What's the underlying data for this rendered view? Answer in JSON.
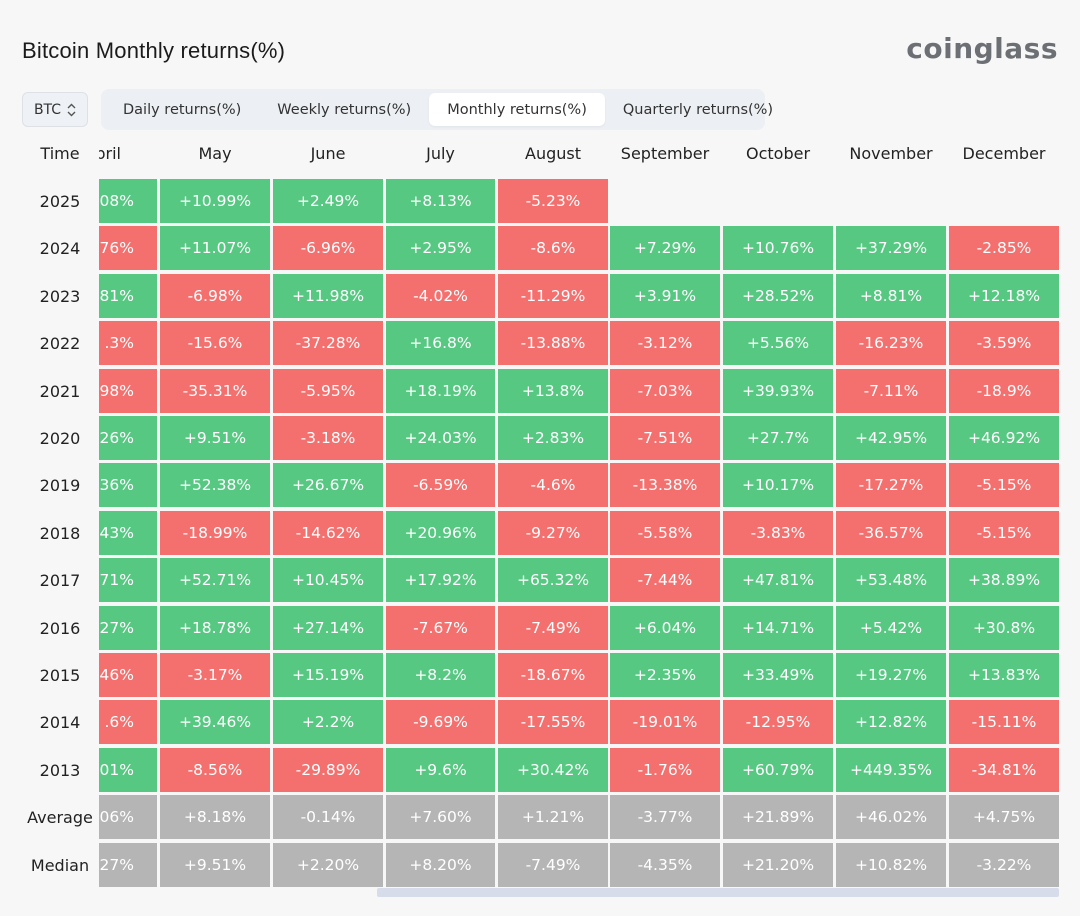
{
  "title": "Bitcoin Monthly returns(%)",
  "brand": "coinglass",
  "coin_select": {
    "value": "BTC"
  },
  "tabs": [
    "Daily returns(%)",
    "Weekly returns(%)",
    "Monthly returns(%)",
    "Quarterly returns(%)"
  ],
  "active_tab": 2,
  "colors": {
    "positive": "#56c882",
    "negative": "#f3706e",
    "summary": "#b5b5b5"
  },
  "chart_data": {
    "type": "heatmap",
    "row_header": "Time",
    "columns": [
      "pril",
      "May",
      "June",
      "July",
      "August",
      "September",
      "October",
      "November",
      "December"
    ],
    "rows": [
      {
        "label": "2025",
        "values": [
          ".08%",
          "+10.99%",
          "+2.49%",
          "+8.13%",
          "-5.23%",
          null,
          null,
          null,
          null
        ],
        "colors": [
          "g",
          "g",
          "g",
          "g",
          "r",
          null,
          null,
          null,
          null
        ]
      },
      {
        "label": "2024",
        "values": [
          ".76%",
          "+11.07%",
          "-6.96%",
          "+2.95%",
          "-8.6%",
          "+7.29%",
          "+10.76%",
          "+37.29%",
          "-2.85%"
        ],
        "colors": [
          "r",
          "g",
          "r",
          "g",
          "r",
          "g",
          "g",
          "g",
          "r"
        ]
      },
      {
        "label": "2023",
        "values": [
          "81%",
          "-6.98%",
          "+11.98%",
          "-4.02%",
          "-11.29%",
          "+3.91%",
          "+28.52%",
          "+8.81%",
          "+12.18%"
        ],
        "colors": [
          "g",
          "r",
          "g",
          "r",
          "r",
          "g",
          "g",
          "g",
          "g"
        ]
      },
      {
        "label": "2022",
        "values": [
          ".3%",
          "-15.6%",
          "-37.28%",
          "+16.8%",
          "-13.88%",
          "-3.12%",
          "+5.56%",
          "-16.23%",
          "-3.59%"
        ],
        "colors": [
          "r",
          "r",
          "r",
          "g",
          "r",
          "r",
          "g",
          "r",
          "r"
        ]
      },
      {
        "label": "2021",
        "values": [
          "98%",
          "-35.31%",
          "-5.95%",
          "+18.19%",
          "+13.8%",
          "-7.03%",
          "+39.93%",
          "-7.11%",
          "-18.9%"
        ],
        "colors": [
          "r",
          "r",
          "r",
          "g",
          "g",
          "r",
          "g",
          "r",
          "r"
        ]
      },
      {
        "label": "2020",
        "values": [
          ".26%",
          "+9.51%",
          "-3.18%",
          "+24.03%",
          "+2.83%",
          "-7.51%",
          "+27.7%",
          "+42.95%",
          "+46.92%"
        ],
        "colors": [
          "g",
          "g",
          "r",
          "g",
          "g",
          "r",
          "g",
          "g",
          "g"
        ]
      },
      {
        "label": "2019",
        "values": [
          ".36%",
          "+52.38%",
          "+26.67%",
          "-6.59%",
          "-4.6%",
          "-13.38%",
          "+10.17%",
          "-17.27%",
          "-5.15%"
        ],
        "colors": [
          "g",
          "g",
          "g",
          "r",
          "r",
          "r",
          "g",
          "r",
          "r"
        ]
      },
      {
        "label": "2018",
        "values": [
          ".43%",
          "-18.99%",
          "-14.62%",
          "+20.96%",
          "-9.27%",
          "-5.58%",
          "-3.83%",
          "-36.57%",
          "-5.15%"
        ],
        "colors": [
          "g",
          "r",
          "r",
          "g",
          "r",
          "r",
          "r",
          "r",
          "r"
        ]
      },
      {
        "label": "2017",
        "values": [
          ".71%",
          "+52.71%",
          "+10.45%",
          "+17.92%",
          "+65.32%",
          "-7.44%",
          "+47.81%",
          "+53.48%",
          "+38.89%"
        ],
        "colors": [
          "g",
          "g",
          "g",
          "g",
          "g",
          "r",
          "g",
          "g",
          "g"
        ]
      },
      {
        "label": "2016",
        "values": [
          "27%",
          "+18.78%",
          "+27.14%",
          "-7.67%",
          "-7.49%",
          "+6.04%",
          "+14.71%",
          "+5.42%",
          "+30.8%"
        ],
        "colors": [
          "g",
          "g",
          "g",
          "r",
          "r",
          "g",
          "g",
          "g",
          "g"
        ]
      },
      {
        "label": "2015",
        "values": [
          "46%",
          "-3.17%",
          "+15.19%",
          "+8.2%",
          "-18.67%",
          "+2.35%",
          "+33.49%",
          "+19.27%",
          "+13.83%"
        ],
        "colors": [
          "r",
          "r",
          "g",
          "g",
          "r",
          "g",
          "g",
          "g",
          "g"
        ]
      },
      {
        "label": "2014",
        "values": [
          ".6%",
          "+39.46%",
          "+2.2%",
          "-9.69%",
          "-17.55%",
          "-19.01%",
          "-12.95%",
          "+12.82%",
          "-15.11%"
        ],
        "colors": [
          "r",
          "g",
          "g",
          "r",
          "r",
          "r",
          "r",
          "g",
          "r"
        ]
      },
      {
        "label": "2013",
        "values": [
          ".01%",
          "-8.56%",
          "-29.89%",
          "+9.6%",
          "+30.42%",
          "-1.76%",
          "+60.79%",
          "+449.35%",
          "-34.81%"
        ],
        "colors": [
          "g",
          "r",
          "r",
          "g",
          "g",
          "r",
          "g",
          "g",
          "r"
        ]
      },
      {
        "label": "Average",
        "values": [
          ".06%",
          "+8.18%",
          "-0.14%",
          "+7.60%",
          "+1.21%",
          "-3.77%",
          "+21.89%",
          "+46.02%",
          "+4.75%"
        ],
        "colors": [
          "s",
          "s",
          "s",
          "s",
          "s",
          "s",
          "s",
          "s",
          "s"
        ]
      },
      {
        "label": "Median",
        "values": [
          "27%",
          "+9.51%",
          "+2.20%",
          "+8.20%",
          "-7.49%",
          "-4.35%",
          "+21.20%",
          "+10.82%",
          "-3.22%"
        ],
        "colors": [
          "s",
          "s",
          "s",
          "s",
          "s",
          "s",
          "s",
          "s",
          "s"
        ]
      }
    ]
  }
}
